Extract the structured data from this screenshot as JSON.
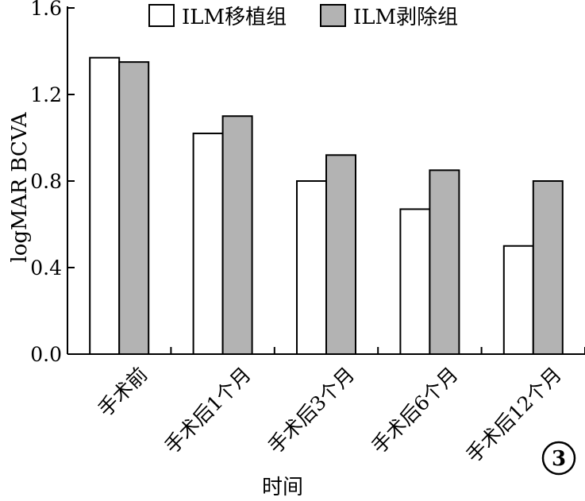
{
  "chart_data": {
    "type": "bar",
    "title": "",
    "categories": [
      "手术前",
      "手术后1个月",
      "手术后3个月",
      "手术后6个月",
      "手术后12个月"
    ],
    "series": [
      {
        "name": "ILM移植组",
        "values": [
          1.37,
          1.02,
          0.8,
          0.67,
          0.5
        ],
        "color": "#ffffff"
      },
      {
        "name": "ILM剥除组",
        "values": [
          1.35,
          1.1,
          0.92,
          0.85,
          0.8
        ],
        "color": "#b3b3b3"
      }
    ],
    "xlabel": "时间",
    "ylabel": "logMAR BCVA",
    "ylim": [
      0,
      1.6
    ],
    "yticks": [
      "0.0",
      "0.4",
      "0.8",
      "1.2",
      "1.6"
    ],
    "grid": false,
    "legend_position": "top"
  },
  "badge": "3"
}
